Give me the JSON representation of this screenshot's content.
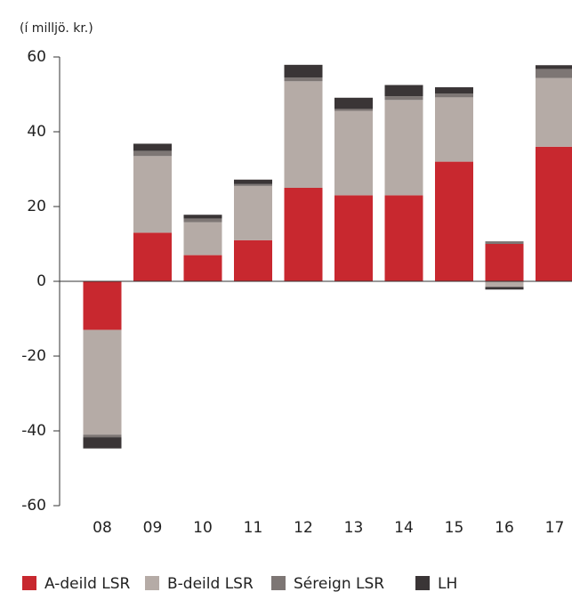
{
  "chart_data": {
    "type": "stacked_bar",
    "y_label": "(í milljö. kr.)",
    "categories": [
      "08",
      "09",
      "10",
      "11",
      "12",
      "13",
      "14",
      "15",
      "16",
      "17"
    ],
    "series": [
      {
        "name": "A-deild LSR",
        "color": "#c8282f",
        "values": [
          -13,
          13,
          7,
          11,
          25,
          23,
          23,
          32,
          10,
          36
        ]
      },
      {
        "name": "B-deild LSR",
        "color": "#b5aba6",
        "values": [
          -28,
          20.5,
          8.8,
          14.5,
          28.5,
          22.6,
          25.5,
          17.2,
          -1.5,
          18.4
        ]
      },
      {
        "name": "Séreign LSR",
        "color": "#7d7674",
        "values": [
          -0.7,
          1.4,
          1,
          0.5,
          1,
          0.5,
          1,
          1,
          0.7,
          2.4
        ]
      },
      {
        "name": "LH",
        "color": "#3a3536",
        "values": [
          -3,
          1.9,
          1,
          1.2,
          3.4,
          3,
          3,
          1.7,
          -0.7,
          1
        ]
      }
    ],
    "ylim": [
      -60,
      60
    ],
    "yticks": [
      60,
      40,
      20,
      0,
      -20,
      -40,
      -60
    ],
    "legend": "bottom"
  }
}
